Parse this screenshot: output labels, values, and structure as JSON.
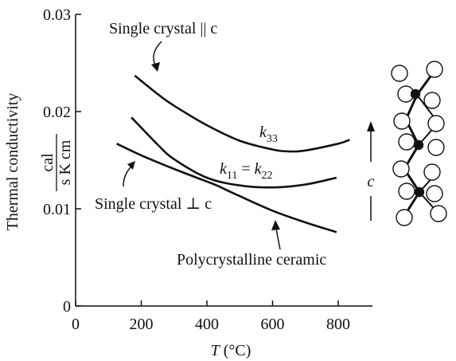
{
  "chart_data": {
    "type": "line",
    "xlabel": {
      "var": "T",
      "unit": " (°C)"
    },
    "ylabel": {
      "text": "Thermal conductivity",
      "unit_num": "cal",
      "unit_den": "s K cm"
    },
    "xlim": [
      0,
      900
    ],
    "ylim": [
      0,
      0.03
    ],
    "x_ticks": [
      0,
      200,
      400,
      600,
      800
    ],
    "x_tick_labels": [
      "0",
      "200",
      "400",
      "600",
      "800"
    ],
    "y_ticks": [
      0,
      0.01,
      0.02,
      0.03
    ],
    "y_tick_labels": [
      "0",
      "0.01",
      "0.02",
      "0.03"
    ],
    "series": [
      {
        "name": "Single crystal || c",
        "label": "k33",
        "x": [
          180,
          250,
          300,
          400,
          500,
          600,
          650,
          700,
          800,
          835
        ],
        "y": [
          0.0237,
          0.0218,
          0.0206,
          0.0186,
          0.017,
          0.0161,
          0.0159,
          0.016,
          0.0167,
          0.0171
        ]
      },
      {
        "name": "Single crystal ⊥ c",
        "label": "k11 = k22",
        "x": [
          170,
          250,
          300,
          400,
          500,
          600,
          700,
          795
        ],
        "y": [
          0.0194,
          0.0166,
          0.0151,
          0.0132,
          0.0124,
          0.0122,
          0.0125,
          0.0132
        ]
      },
      {
        "name": "Polycrystalline ceramic",
        "x": [
          125,
          200,
          300,
          400,
          430,
          500,
          600,
          700,
          795
        ],
        "y": [
          0.0167,
          0.0155,
          0.0141,
          0.0128,
          0.0124,
          0.0113,
          0.0098,
          0.0086,
          0.0076
        ]
      }
    ],
    "annotations": {
      "par": "Single crystal || c",
      "perp": "Single crystal ⊥ c",
      "poly": "Polycrystalline ceramic",
      "k33": {
        "main": "k",
        "sub": "33"
      },
      "k11": {
        "a": "k",
        "a_sub": "11",
        "eq": " = ",
        "b": "k",
        "b_sub": "22"
      },
      "caxis": "c"
    }
  }
}
